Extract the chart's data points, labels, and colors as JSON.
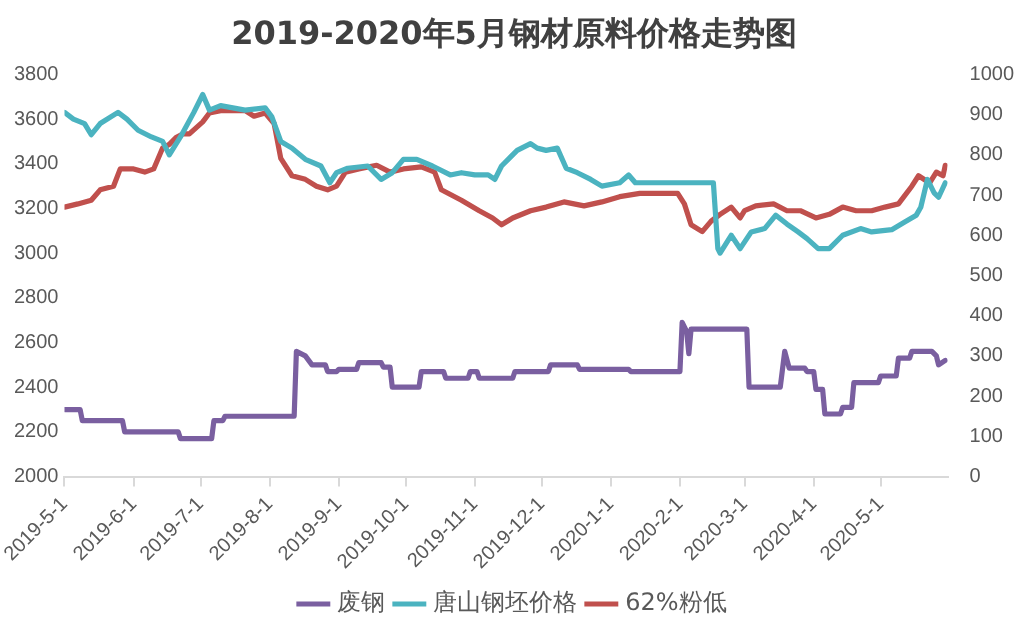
{
  "chart_data": {
    "type": "line",
    "title": "2019-2020年5月钢材原料价格走势图",
    "legend": "bottom",
    "marker": "none",
    "line_style": "solid",
    "grid": false,
    "xlim": [
      "2019-05-01",
      "2020-05-31"
    ],
    "xticks": [
      {
        "value": "2019-05-01",
        "label": "2019-5-1"
      },
      {
        "value": "2019-06-01",
        "label": "2019-6-1"
      },
      {
        "value": "2019-07-01",
        "label": "2019-7-1"
      },
      {
        "value": "2019-08-01",
        "label": "2019-8-1"
      },
      {
        "value": "2019-09-01",
        "label": "2019-9-1"
      },
      {
        "value": "2019-10-01",
        "label": "2019-10-1"
      },
      {
        "value": "2019-11-01",
        "label": "2019-11-1"
      },
      {
        "value": "2019-12-01",
        "label": "2019-12-1"
      },
      {
        "value": "2020-01-01",
        "label": "2020-1-1"
      },
      {
        "value": "2020-02-01",
        "label": "2020-2-1"
      },
      {
        "value": "2020-03-01",
        "label": "2020-3-1"
      },
      {
        "value": "2020-04-01",
        "label": "2020-4-1"
      },
      {
        "value": "2020-05-01",
        "label": "2020-5-1"
      }
    ],
    "ylim": [
      2000,
      3800
    ],
    "yticks": [
      2000,
      2200,
      2400,
      2600,
      2800,
      3000,
      3200,
      3400,
      3600,
      3800
    ],
    "y2lim": [
      0,
      1000
    ],
    "y2ticks": [
      0,
      100,
      200,
      300,
      400,
      500,
      600,
      700,
      800,
      900,
      1000
    ],
    "series": [
      {
        "name": "废钢",
        "color": "#7a5fa0",
        "x": [
          "2019-05-01",
          "2019-05-08",
          "2019-05-09",
          "2019-05-27",
          "2019-05-28",
          "2019-06-21",
          "2019-06-22",
          "2019-07-06",
          "2019-07-07",
          "2019-07-11",
          "2019-07-12",
          "2019-08-12",
          "2019-08-13",
          "2019-08-17",
          "2019-08-20",
          "2019-08-26",
          "2019-08-27",
          "2019-08-31",
          "2019-09-01",
          "2019-09-09",
          "2019-09-10",
          "2019-09-20",
          "2019-09-21",
          "2019-09-24",
          "2019-09-25",
          "2019-10-07",
          "2019-10-08",
          "2019-10-18",
          "2019-10-19",
          "2019-10-29",
          "2019-10-30",
          "2019-11-02",
          "2019-11-03",
          "2019-11-18",
          "2019-11-19",
          "2019-12-04",
          "2019-12-05",
          "2019-12-17",
          "2019-12-18",
          "2020-01-09",
          "2020-01-10",
          "2020-02-01",
          "2020-02-02",
          "2020-02-04",
          "2020-02-05",
          "2020-02-06",
          "2020-03-02",
          "2020-03-03",
          "2020-03-17",
          "2020-03-19",
          "2020-03-21",
          "2020-03-28",
          "2020-03-29",
          "2020-04-01",
          "2020-04-02",
          "2020-04-05",
          "2020-04-06",
          "2020-04-13",
          "2020-04-14",
          "2020-04-18",
          "2020-04-19",
          "2020-04-30",
          "2020-05-01",
          "2020-05-08",
          "2020-05-09",
          "2020-05-14",
          "2020-05-15",
          "2020-05-24",
          "2020-05-26",
          "2020-05-27",
          "2020-05-30"
        ],
        "values": [
          2300,
          2300,
          2250,
          2250,
          2200,
          2200,
          2170,
          2170,
          2250,
          2250,
          2270,
          2270,
          2560,
          2540,
          2500,
          2500,
          2470,
          2470,
          2480,
          2480,
          2510,
          2510,
          2490,
          2490,
          2400,
          2400,
          2470,
          2470,
          2440,
          2440,
          2470,
          2470,
          2440,
          2440,
          2470,
          2470,
          2500,
          2500,
          2480,
          2480,
          2470,
          2470,
          2690,
          2650,
          2550,
          2660,
          2660,
          2400,
          2400,
          2560,
          2485,
          2485,
          2470,
          2470,
          2390,
          2390,
          2280,
          2280,
          2310,
          2310,
          2420,
          2420,
          2450,
          2450,
          2530,
          2530,
          2560,
          2560,
          2540,
          2500,
          2520
        ]
      },
      {
        "name": "唐山钢坯价格",
        "color": "#4bb3c0",
        "x": [
          "2019-05-01",
          "2019-05-05",
          "2019-05-10",
          "2019-05-13",
          "2019-05-17",
          "2019-05-25",
          "2019-05-29",
          "2019-06-03",
          "2019-06-09",
          "2019-06-14",
          "2019-06-17",
          "2019-06-22",
          "2019-06-28",
          "2019-07-02",
          "2019-07-05",
          "2019-07-10",
          "2019-07-21",
          "2019-07-30",
          "2019-08-02",
          "2019-08-06",
          "2019-08-11",
          "2019-08-17",
          "2019-08-24",
          "2019-08-28",
          "2019-08-31",
          "2019-09-05",
          "2019-09-14",
          "2019-09-20",
          "2019-09-25",
          "2019-09-30",
          "2019-10-06",
          "2019-10-13",
          "2019-10-21",
          "2019-10-26",
          "2019-11-01",
          "2019-11-07",
          "2019-11-10",
          "2019-11-13",
          "2019-11-20",
          "2019-11-26",
          "2019-11-29",
          "2019-12-03",
          "2019-12-08",
          "2019-12-12",
          "2019-12-17",
          "2019-12-23",
          "2019-12-28",
          "2020-01-05",
          "2020-01-09",
          "2020-01-12",
          "2020-02-16",
          "2020-02-18",
          "2020-02-19",
          "2020-02-24",
          "2020-02-28",
          "2020-03-04",
          "2020-03-10",
          "2020-03-15",
          "2020-03-20",
          "2020-03-25",
          "2020-03-29",
          "2020-04-03",
          "2020-04-08",
          "2020-04-14",
          "2020-04-22",
          "2020-04-27",
          "2020-05-06",
          "2020-05-12",
          "2020-05-17",
          "2020-05-19",
          "2020-05-22",
          "2020-05-25",
          "2020-05-27",
          "2020-05-30"
        ],
        "values": [
          3630,
          3600,
          3580,
          3530,
          3580,
          3630,
          3600,
          3550,
          3520,
          3500,
          3440,
          3520,
          3630,
          3710,
          3640,
          3660,
          3640,
          3650,
          3610,
          3500,
          3470,
          3420,
          3390,
          3315,
          3360,
          3380,
          3390,
          3330,
          3360,
          3420,
          3420,
          3390,
          3350,
          3360,
          3350,
          3350,
          3330,
          3390,
          3460,
          3490,
          3470,
          3460,
          3470,
          3380,
          3360,
          3330,
          3300,
          3315,
          3350,
          3315,
          3315,
          3020,
          3000,
          3080,
          3020,
          3095,
          3110,
          3170,
          3130,
          3095,
          3065,
          3020,
          3020,
          3080,
          3110,
          3095,
          3105,
          3140,
          3170,
          3205,
          3330,
          3270,
          3250,
          3315
        ]
      },
      {
        "name": "62%粉低",
        "color": "#c0504d",
        "axis": "y2",
        "x": [
          "2019-05-01",
          "2019-05-07",
          "2019-05-13",
          "2019-05-17",
          "2019-05-23",
          "2019-05-26",
          "2019-06-01",
          "2019-06-06",
          "2019-06-10",
          "2019-06-14",
          "2019-06-17",
          "2019-06-20",
          "2019-06-23",
          "2019-06-26",
          "2019-07-02",
          "2019-07-05",
          "2019-07-10",
          "2019-07-21",
          "2019-07-25",
          "2019-07-30",
          "2019-08-03",
          "2019-08-06",
          "2019-08-11",
          "2019-08-17",
          "2019-08-22",
          "2019-08-27",
          "2019-08-31",
          "2019-09-04",
          "2019-09-10",
          "2019-09-18",
          "2019-09-24",
          "2019-09-30",
          "2019-10-08",
          "2019-10-14",
          "2019-10-17",
          "2019-10-26",
          "2019-11-03",
          "2019-11-09",
          "2019-11-13",
          "2019-11-18",
          "2019-11-26",
          "2019-12-03",
          "2019-12-11",
          "2019-12-20",
          "2019-12-28",
          "2020-01-05",
          "2020-01-14",
          "2020-01-31",
          "2020-02-03",
          "2020-02-06",
          "2020-02-11",
          "2020-02-15",
          "2020-02-19",
          "2020-02-24",
          "2020-02-28",
          "2020-03-01",
          "2020-03-06",
          "2020-03-14",
          "2020-03-20",
          "2020-03-26",
          "2020-04-02",
          "2020-04-08",
          "2020-04-14",
          "2020-04-20",
          "2020-04-27",
          "2020-05-03",
          "2020-05-09",
          "2020-05-15",
          "2020-05-18",
          "2020-05-23",
          "2020-05-26",
          "2020-05-29",
          "2020-05-30"
        ],
        "values": [
          670,
          678,
          687,
          713,
          722,
          765,
          765,
          757,
          765,
          817,
          826,
          843,
          852,
          852,
          882,
          904,
          910,
          910,
          896,
          904,
          878,
          791,
          748,
          739,
          722,
          713,
          722,
          757,
          765,
          774,
          757,
          765,
          770,
          757,
          713,
          687,
          661,
          643,
          626,
          643,
          661,
          670,
          683,
          673,
          683,
          696,
          704,
          704,
          678,
          626,
          609,
          635,
          652,
          670,
          643,
          661,
          673,
          678,
          661,
          661,
          643,
          652,
          670,
          661,
          661,
          670,
          678,
          722,
          748,
          730,
          757,
          748,
          774
        ]
      }
    ]
  }
}
